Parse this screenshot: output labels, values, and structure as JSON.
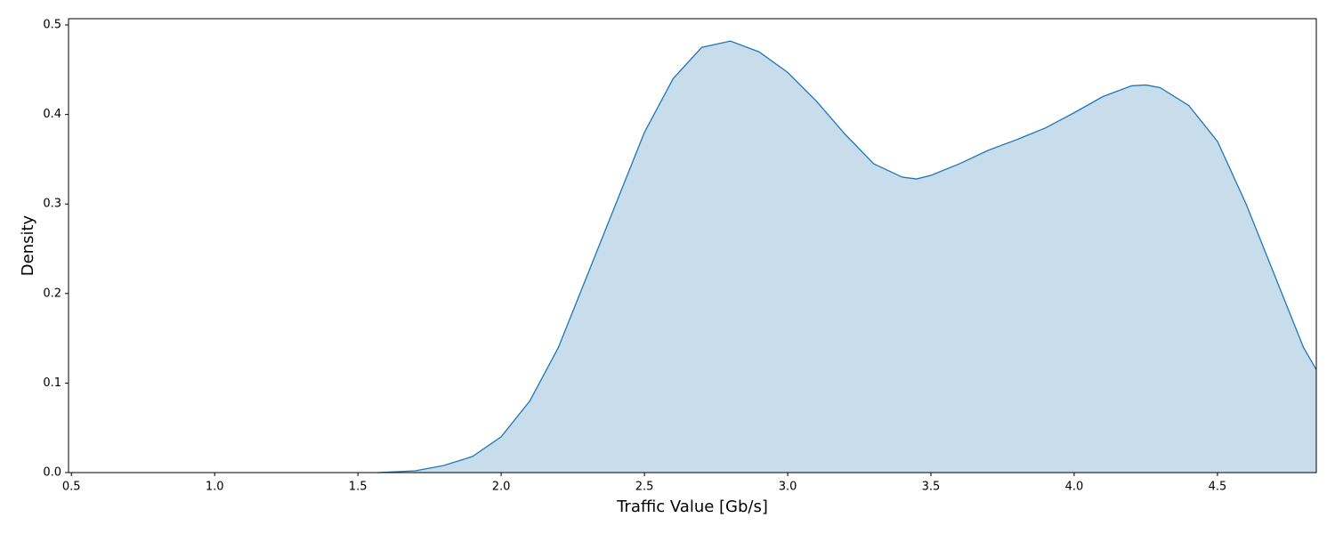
{
  "chart_data": {
    "type": "area",
    "x_label": "Traffic Value [Gb/s]",
    "y_label": "Density",
    "x": [
      1.57,
      1.7,
      1.8,
      1.9,
      2.0,
      2.1,
      2.2,
      2.3,
      2.4,
      2.5,
      2.6,
      2.7,
      2.8,
      2.9,
      3.0,
      3.1,
      3.2,
      3.3,
      3.4,
      3.45,
      3.5,
      3.6,
      3.7,
      3.8,
      3.9,
      4.0,
      4.1,
      4.2,
      4.25,
      4.3,
      4.4,
      4.5,
      4.6,
      4.7,
      4.8,
      4.845
    ],
    "series": [
      {
        "color": "#1f77b4",
        "values": [
          0,
          0.002,
          0.008,
          0.018,
          0.04,
          0.08,
          0.14,
          0.22,
          0.3,
          0.38,
          0.44,
          0.475,
          0.482,
          0.47,
          0.447,
          0.415,
          0.378,
          0.345,
          0.33,
          0.328,
          0.332,
          0.345,
          0.36,
          0.372,
          0.385,
          0.402,
          0.42,
          0.432,
          0.433,
          0.43,
          0.41,
          0.37,
          0.3,
          0.22,
          0.14,
          0.115
        ]
      }
    ],
    "xlim": [
      0.49,
      4.845
    ],
    "ylim": [
      0,
      0.507
    ],
    "xticks": [
      0.5,
      {
        "value": 1,
        "label": "1.0"
      },
      1.5,
      {
        "value": 2,
        "label": "2.0"
      },
      2.5,
      {
        "value": 3,
        "label": "3.0"
      },
      3.5,
      {
        "value": 4,
        "label": "4.0"
      },
      4.5
    ],
    "yticks": [
      {
        "value": 0,
        "label": "0.0"
      },
      0.1,
      0.2,
      0.3,
      0.4,
      0.5
    ]
  }
}
